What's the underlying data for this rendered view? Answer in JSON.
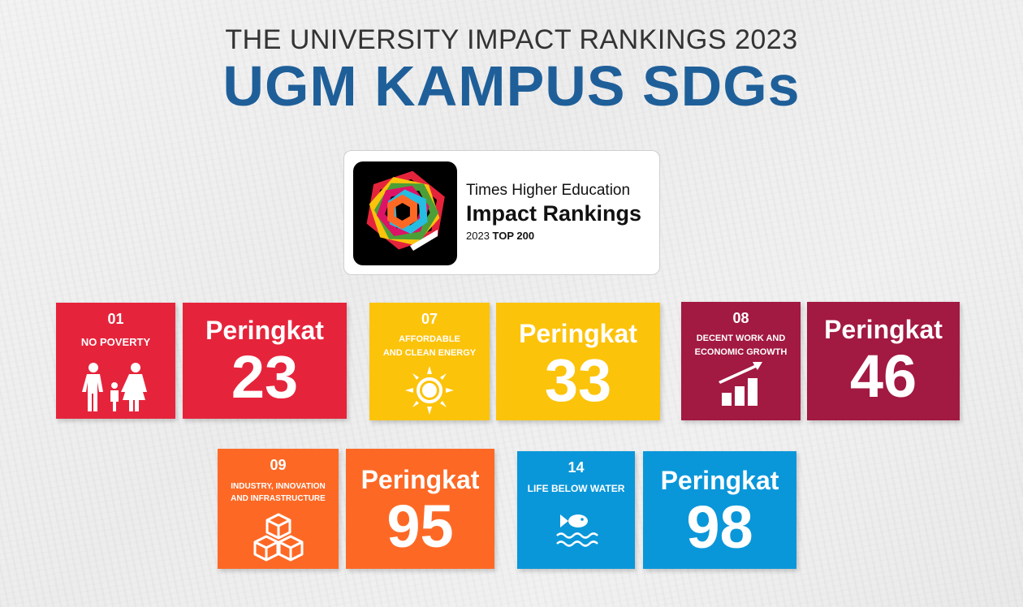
{
  "header": {
    "subtitle": "THE UNIVERSITY IMPACT RANKINGS 2023",
    "title": "UGM KAMPUS SDGs"
  },
  "badge": {
    "org": "Times Higher Education",
    "name": "Impact Rankings",
    "year": "2023",
    "tier": "TOP 200"
  },
  "sdgs": [
    {
      "number": "01",
      "goal": "NO POVERTY",
      "icon": "family-icon",
      "color": "#e5243b",
      "rank_label": "Peringkat",
      "rank": "23"
    },
    {
      "number": "07",
      "goal_line1": "AFFORDABLE",
      "goal_line2": "AND CLEAN ENERGY",
      "icon": "sun-icon",
      "color": "#fcc30b",
      "rank_label": "Peringkat",
      "rank": "33"
    },
    {
      "number": "08",
      "goal_line1": "DECENT WORK AND",
      "goal_line2": "ECONOMIC GROWTH",
      "icon": "growth-chart-icon",
      "color": "#a21942",
      "rank_label": "Peringkat",
      "rank": "46"
    },
    {
      "number": "09",
      "goal_line1": "INDUSTRY, INNOVATION",
      "goal_line2": "AND INFRASTRUCTURE",
      "icon": "cubes-icon",
      "color": "#fd6925",
      "rank_label": "Peringkat",
      "rank": "95"
    },
    {
      "number": "14",
      "goal": "LIFE BELOW WATER",
      "icon": "fish-waves-icon",
      "color": "#0a97d9",
      "rank_label": "Peringkat",
      "rank": "98"
    }
  ]
}
